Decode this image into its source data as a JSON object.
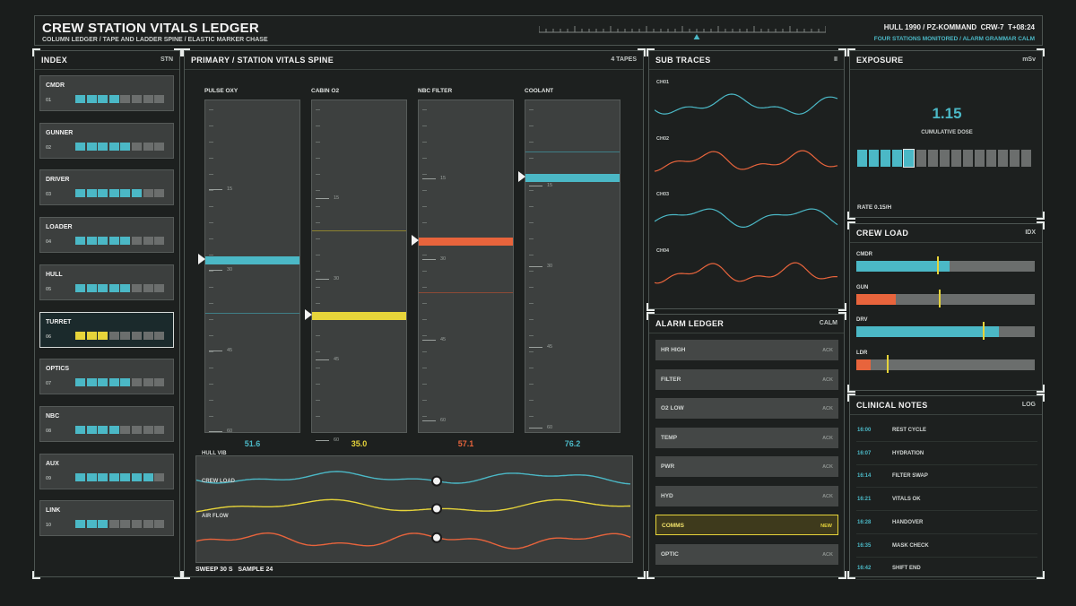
{
  "header": {
    "title": "CREW STATION VITALS LEDGER",
    "subtitle": "COLUMN LEDGER / TAPE AND LADDER SPINE / ELASTIC MARKER CHASE",
    "status_line": "HULL 1990 / PZ-KOMMAND  CRW-7  T+08:24",
    "status_sub": "FOUR STATIONS MONITORED / ALARM GRAMMAR CALM"
  },
  "index_panel": {
    "title": "INDEX",
    "tag": "STN",
    "stations": [
      {
        "name": "CMDR",
        "num": "01",
        "filled": 4,
        "color": "#4bb8c6",
        "selected": false
      },
      {
        "name": "GUNNER",
        "num": "02",
        "filled": 5,
        "color": "#4bb8c6",
        "selected": false
      },
      {
        "name": "DRIVER",
        "num": "03",
        "filled": 6,
        "color": "#4bb8c6",
        "selected": false
      },
      {
        "name": "LOADER",
        "num": "04",
        "filled": 5,
        "color": "#4bb8c6",
        "selected": false
      },
      {
        "name": "HULL",
        "num": "05",
        "filled": 5,
        "color": "#4bb8c6",
        "selected": false
      },
      {
        "name": "TURRET",
        "num": "06",
        "filled": 3,
        "color": "#e6d43a",
        "selected": true
      },
      {
        "name": "OPTICS",
        "num": "07",
        "filled": 5,
        "color": "#4bb8c6",
        "selected": false
      },
      {
        "name": "NBC",
        "num": "08",
        "filled": 4,
        "color": "#4bb8c6",
        "selected": false
      },
      {
        "name": "AUX",
        "num": "09",
        "filled": 7,
        "color": "#4bb8c6",
        "selected": false
      },
      {
        "name": "LINK",
        "num": "10",
        "filled": 3,
        "color": "#4bb8c6",
        "selected": false
      }
    ]
  },
  "primary_panel": {
    "title": "PRIMARY / STATION VITALS SPINE",
    "tag": "4 TAPES",
    "tapes": [
      {
        "label": "PULSE OXY",
        "value": "51.6",
        "color": "#4bb8c6",
        "ticks": [
          "15",
          "30",
          "45",
          "60"
        ]
      },
      {
        "label": "CABIN O2",
        "value": "35.0",
        "color": "#e6d43a",
        "ticks": [
          "15",
          "30",
          "45",
          "60"
        ]
      },
      {
        "label": "NBC FILTER",
        "value": "57.1",
        "color": "#e8643c",
        "ticks": [
          "15",
          "30",
          "45",
          "60"
        ]
      },
      {
        "label": "COOLANT",
        "value": "76.2",
        "color": "#4bb8c6",
        "ticks": [
          "15",
          "30",
          "45",
          "60"
        ]
      }
    ],
    "waves": [
      {
        "label": "HULL VIB",
        "color": "#4bb8c6"
      },
      {
        "label": "CREW LOAD",
        "color": "#e6d43a"
      },
      {
        "label": "AIR FLOW",
        "color": "#e8643c"
      }
    ],
    "footer": "SWEEP 30 S   SAMPLE 24"
  },
  "sub_traces": {
    "title": "SUB TRACES",
    "tag": "II",
    "channels": [
      {
        "label": "CH01",
        "color": "#4bb8c6"
      },
      {
        "label": "CH02",
        "color": "#e8643c"
      },
      {
        "label": "CH03",
        "color": "#4bb8c6"
      },
      {
        "label": "CH04",
        "color": "#e8643c"
      }
    ]
  },
  "alarm_ledger": {
    "title": "ALARM LEDGER",
    "tag": "CALM",
    "rows": [
      {
        "label": "HR HIGH",
        "status": "ACK",
        "active": false
      },
      {
        "label": "FILTER",
        "status": "ACK",
        "active": false
      },
      {
        "label": "O2 LOW",
        "status": "ACK",
        "active": false
      },
      {
        "label": "TEMP",
        "status": "ACK",
        "active": false
      },
      {
        "label": "PWR",
        "status": "ACK",
        "active": false
      },
      {
        "label": "HYD",
        "status": "ACK",
        "active": false
      },
      {
        "label": "COMMS",
        "status": "NEW",
        "active": true
      },
      {
        "label": "OPTIC",
        "status": "ACK",
        "active": false
      }
    ]
  },
  "exposure": {
    "title": "EXPOSURE",
    "tag": "mSv",
    "value": "1.15",
    "caption": "CUMULATIVE DOSE",
    "filled_segments": 5,
    "total_segments": 15,
    "rate": "RATE 0.15/H"
  },
  "crew_load": {
    "title": "CREW LOAD",
    "tag": "IDX",
    "rows": [
      {
        "label": "CMDR",
        "fill": 0.52,
        "marker": 0.45,
        "color": "#4bb8c6"
      },
      {
        "label": "GUN",
        "fill": 0.22,
        "marker": 0.46,
        "color": "#e8643c"
      },
      {
        "label": "DRV",
        "fill": 0.8,
        "marker": 0.71,
        "color": "#4bb8c6"
      },
      {
        "label": "LDR",
        "fill": 0.08,
        "marker": 0.17,
        "color": "#e8643c"
      }
    ]
  },
  "clinical_notes": {
    "title": "CLINICAL NOTES",
    "tag": "LOG",
    "entries": [
      {
        "time": "16:00",
        "text": "REST CYCLE"
      },
      {
        "time": "16:07",
        "text": "HYDRATION"
      },
      {
        "time": "16:14",
        "text": "FILTER SWAP"
      },
      {
        "time": "16:21",
        "text": "VITALS OK"
      },
      {
        "time": "16:28",
        "text": "HANDOVER"
      },
      {
        "time": "16:35",
        "text": "MASK CHECK"
      },
      {
        "time": "16:42",
        "text": "SHIFT END"
      }
    ]
  },
  "colors": {
    "cyan": "#4bb8c6",
    "yellow": "#e6d43a",
    "orange": "#e8643c",
    "empty": "#6b6e6d"
  }
}
